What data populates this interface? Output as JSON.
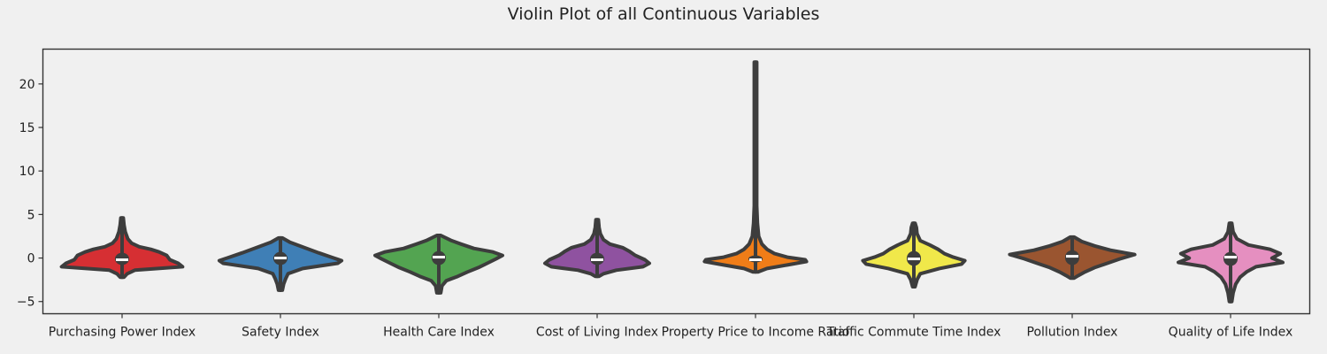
{
  "chart_data": {
    "type": "violin",
    "title": "Violin Plot of all Continuous Variables",
    "xlabel": "",
    "ylabel": "",
    "ylim": [
      -6.4,
      24.0
    ],
    "yticks": [
      -5,
      0,
      5,
      10,
      15,
      20
    ],
    "grid": false,
    "categories": [
      "Purchasing Power Index",
      "Safety Index",
      "Health Care Index",
      "Cost of Living Index",
      "Property Price to Income Ratio",
      "Traffic Commute Time Index",
      "Pollution Index",
      "Quality of Life Index"
    ],
    "colors": [
      "#d62f33",
      "#3f7fb6",
      "#53a451",
      "#8f52a0",
      "#f07d18",
      "#f0e84a",
      "#9a5530",
      "#e58fc0"
    ],
    "series": [
      {
        "min": -2.2,
        "max": 4.6,
        "q1": -0.8,
        "median": -0.2,
        "q3": 0.6,
        "density": [
          [
            -2.2,
            0.03
          ],
          [
            -1.8,
            0.08
          ],
          [
            -1.4,
            0.2
          ],
          [
            -1.0,
            0.95
          ],
          [
            -0.6,
            0.88
          ],
          [
            -0.2,
            0.75
          ],
          [
            0.3,
            0.7
          ],
          [
            0.7,
            0.58
          ],
          [
            1.0,
            0.45
          ],
          [
            1.3,
            0.27
          ],
          [
            1.7,
            0.15
          ],
          [
            2.2,
            0.09
          ],
          [
            3.0,
            0.05
          ],
          [
            3.8,
            0.03
          ],
          [
            4.6,
            0.02
          ]
        ]
      },
      {
        "min": -3.7,
        "max": 2.3,
        "q1": -0.8,
        "median": 0.0,
        "q3": 0.7,
        "density": [
          [
            -3.7,
            0.03
          ],
          [
            -3.0,
            0.05
          ],
          [
            -2.4,
            0.08
          ],
          [
            -1.8,
            0.12
          ],
          [
            -1.2,
            0.35
          ],
          [
            -0.6,
            0.9
          ],
          [
            -0.3,
            0.96
          ],
          [
            0.1,
            0.8
          ],
          [
            0.6,
            0.6
          ],
          [
            1.0,
            0.45
          ],
          [
            1.4,
            0.3
          ],
          [
            1.8,
            0.15
          ],
          [
            2.3,
            0.03
          ]
        ]
      },
      {
        "min": -4.0,
        "max": 2.6,
        "q1": -0.8,
        "median": 0.1,
        "q3": 0.8,
        "density": [
          [
            -4.0,
            0.03
          ],
          [
            -3.2,
            0.05
          ],
          [
            -2.6,
            0.12
          ],
          [
            -2.1,
            0.3
          ],
          [
            -1.6,
            0.45
          ],
          [
            -1.1,
            0.62
          ],
          [
            -0.6,
            0.76
          ],
          [
            -0.1,
            0.9
          ],
          [
            0.3,
            1.0
          ],
          [
            0.7,
            0.85
          ],
          [
            1.1,
            0.55
          ],
          [
            1.6,
            0.35
          ],
          [
            2.0,
            0.2
          ],
          [
            2.6,
            0.03
          ]
        ]
      },
      {
        "min": -2.1,
        "max": 4.4,
        "q1": -0.8,
        "median": -0.2,
        "q3": 0.6,
        "density": [
          [
            -2.1,
            0.03
          ],
          [
            -1.8,
            0.1
          ],
          [
            -1.4,
            0.3
          ],
          [
            -1.0,
            0.72
          ],
          [
            -0.6,
            0.82
          ],
          [
            -0.2,
            0.75
          ],
          [
            0.3,
            0.6
          ],
          [
            0.8,
            0.5
          ],
          [
            1.2,
            0.4
          ],
          [
            1.6,
            0.2
          ],
          [
            2.1,
            0.1
          ],
          [
            2.8,
            0.05
          ],
          [
            3.5,
            0.03
          ],
          [
            4.4,
            0.02
          ]
        ]
      },
      {
        "min": -1.6,
        "max": 22.5,
        "q1": -0.5,
        "median": -0.2,
        "q3": 0.3,
        "density": [
          [
            -1.6,
            0.04
          ],
          [
            -1.2,
            0.18
          ],
          [
            -0.8,
            0.5
          ],
          [
            -0.4,
            0.8
          ],
          [
            -0.2,
            0.78
          ],
          [
            0.1,
            0.5
          ],
          [
            0.5,
            0.3
          ],
          [
            1.0,
            0.18
          ],
          [
            1.6,
            0.1
          ],
          [
            2.5,
            0.05
          ],
          [
            4.0,
            0.03
          ],
          [
            6.0,
            0.02
          ],
          [
            10.0,
            0.02
          ],
          [
            16.0,
            0.02
          ],
          [
            22.5,
            0.02
          ]
        ]
      },
      {
        "min": -3.3,
        "max": 4.0,
        "q1": -0.9,
        "median": -0.1,
        "q3": 0.8,
        "density": [
          [
            -3.3,
            0.02
          ],
          [
            -2.5,
            0.05
          ],
          [
            -1.8,
            0.1
          ],
          [
            -1.2,
            0.4
          ],
          [
            -0.7,
            0.75
          ],
          [
            -0.3,
            0.8
          ],
          [
            0.1,
            0.62
          ],
          [
            0.5,
            0.48
          ],
          [
            1.0,
            0.38
          ],
          [
            1.5,
            0.25
          ],
          [
            2.0,
            0.1
          ],
          [
            2.8,
            0.05
          ],
          [
            3.5,
            0.04
          ],
          [
            4.0,
            0.02
          ]
        ]
      },
      {
        "min": -2.3,
        "max": 2.4,
        "q1": -0.8,
        "median": 0.2,
        "q3": 0.9,
        "density": [
          [
            -2.3,
            0.03
          ],
          [
            -2.0,
            0.1
          ],
          [
            -1.6,
            0.2
          ],
          [
            -1.1,
            0.35
          ],
          [
            -0.6,
            0.55
          ],
          [
            -0.1,
            0.75
          ],
          [
            0.4,
            0.98
          ],
          [
            0.9,
            0.6
          ],
          [
            1.4,
            0.35
          ],
          [
            1.9,
            0.15
          ],
          [
            2.4,
            0.03
          ]
        ]
      },
      {
        "min": -5.0,
        "max": 4.0,
        "q1": -0.9,
        "median": 0.1,
        "q3": 0.7,
        "density": [
          [
            -5.0,
            0.02
          ],
          [
            -4.0,
            0.04
          ],
          [
            -3.0,
            0.08
          ],
          [
            -2.2,
            0.15
          ],
          [
            -1.6,
            0.25
          ],
          [
            -1.0,
            0.4
          ],
          [
            -0.5,
            0.82
          ],
          [
            0.0,
            0.65
          ],
          [
            0.5,
            0.78
          ],
          [
            1.0,
            0.62
          ],
          [
            1.5,
            0.28
          ],
          [
            2.2,
            0.1
          ],
          [
            3.0,
            0.04
          ],
          [
            4.0,
            0.02
          ]
        ]
      }
    ]
  }
}
